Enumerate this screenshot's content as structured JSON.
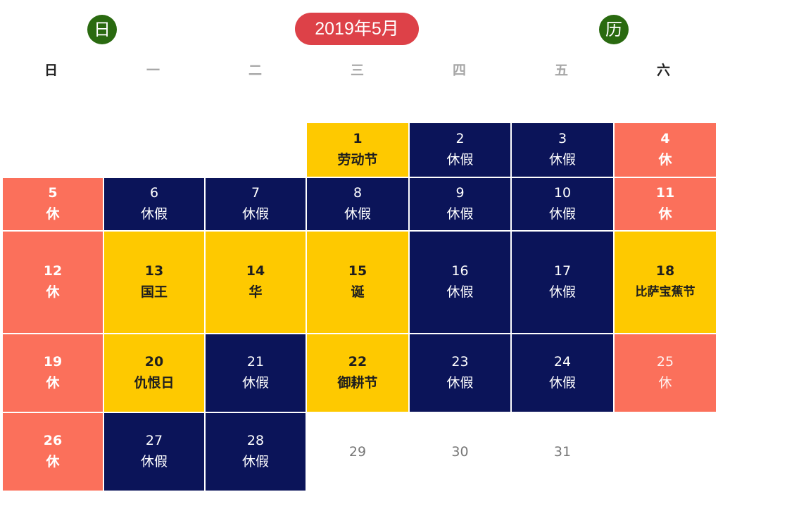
{
  "header": {
    "left_badge": "日",
    "title": "2019年5月",
    "right_badge": "历"
  },
  "weekdays": [
    "日",
    "一",
    "二",
    "三",
    "四",
    "五",
    "六"
  ],
  "colors": {
    "navy": "#0b1459",
    "salmon": "#fb705b",
    "yellow": "#fec900",
    "title_red": "#dd4148",
    "badge_green": "#2a6a10"
  },
  "days": {
    "d1": {
      "num": "1",
      "label": "劳动节"
    },
    "d2": {
      "num": "2",
      "label": "休假"
    },
    "d3": {
      "num": "3",
      "label": "休假"
    },
    "d4": {
      "num": "4",
      "label": "休"
    },
    "d5": {
      "num": "5",
      "label": "休"
    },
    "d6": {
      "num": "6",
      "label": "休假"
    },
    "d7": {
      "num": "7",
      "label": "休假"
    },
    "d8": {
      "num": "8",
      "label": "休假"
    },
    "d9": {
      "num": "9",
      "label": "休假"
    },
    "d10": {
      "num": "10",
      "label": "休假"
    },
    "d11": {
      "num": "11",
      "label": "休"
    },
    "d12": {
      "num": "12",
      "label": "休"
    },
    "d13": {
      "num": "13",
      "label": "国王"
    },
    "d14": {
      "num": "14",
      "label": "华"
    },
    "d15": {
      "num": "15",
      "label": "诞"
    },
    "d16": {
      "num": "16",
      "label": "休假"
    },
    "d17": {
      "num": "17",
      "label": "休假"
    },
    "d18": {
      "num": "18",
      "label": "比萨宝蕉节"
    },
    "d19": {
      "num": "19",
      "label": "休"
    },
    "d20": {
      "num": "20",
      "label": "仇恨日"
    },
    "d21": {
      "num": "21",
      "label": "休假"
    },
    "d22": {
      "num": "22",
      "label": "御耕节"
    },
    "d23": {
      "num": "23",
      "label": "休假"
    },
    "d24": {
      "num": "24",
      "label": "休假"
    },
    "d25": {
      "num": "25",
      "label": "休"
    },
    "d26": {
      "num": "26",
      "label": "休"
    },
    "d27": {
      "num": "27",
      "label": "休假"
    },
    "d28": {
      "num": "28",
      "label": "休假"
    },
    "d29": {
      "num": "29"
    },
    "d30": {
      "num": "30"
    },
    "d31": {
      "num": "31"
    }
  }
}
